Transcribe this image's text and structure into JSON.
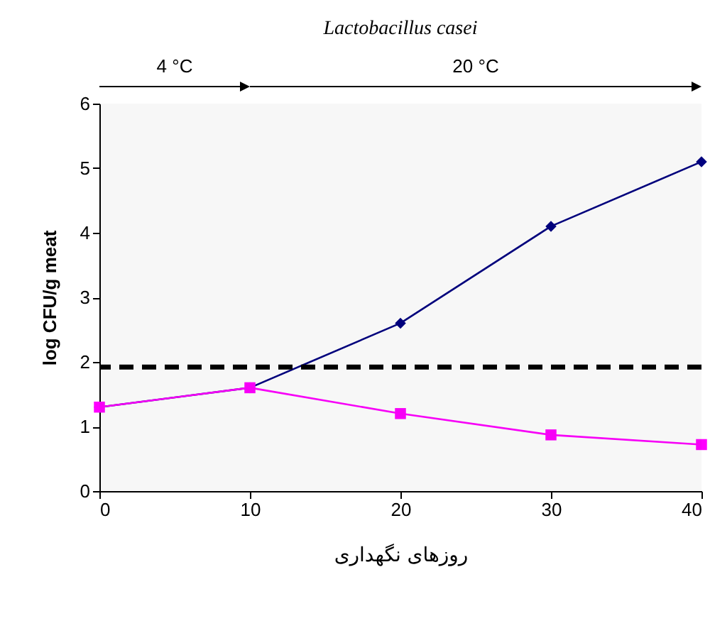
{
  "chart_data": {
    "type": "line",
    "title": "Lactobacillus casei",
    "xlabel": "روزهای نگهداری",
    "ylabel": "log CFU/g meat",
    "x": [
      0,
      10,
      20,
      30,
      40
    ],
    "series": [
      {
        "color": "#000080",
        "marker": "diamond",
        "values": [
          1.3,
          1.6,
          2.6,
          4.1,
          5.1
        ]
      },
      {
        "color": "#ff00ff",
        "marker": "square",
        "values": [
          1.3,
          1.6,
          1.2,
          0.87,
          0.72
        ]
      }
    ],
    "xlim": [
      0,
      40
    ],
    "xticks": [
      0,
      10,
      20,
      30,
      40
    ],
    "ylim": [
      0,
      6
    ],
    "yticks": [
      0,
      1,
      2,
      3,
      4,
      5,
      6
    ],
    "ref_lines": [
      {
        "axis": "y",
        "value": 1.92,
        "color": "#000000",
        "line_style": "dashed"
      }
    ],
    "bands": [
      {
        "axis": "x",
        "from": 0,
        "to": 10,
        "label": "4 °C"
      },
      {
        "axis": "x",
        "from": 10,
        "to": 40,
        "label": "20 °C"
      }
    ],
    "grid": false
  }
}
